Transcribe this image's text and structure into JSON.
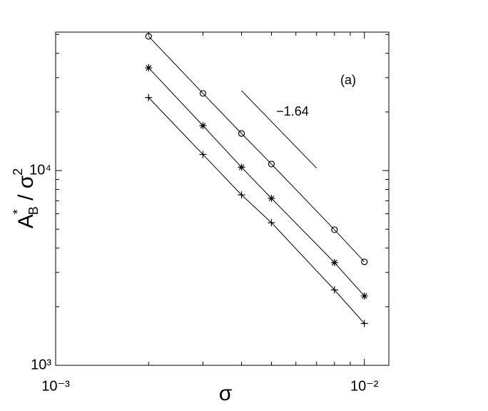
{
  "chart_data": {
    "type": "line",
    "xlabel": "σ",
    "ylabel": [
      "A",
      "*",
      "B",
      " / σ",
      "2"
    ],
    "xscale": "log",
    "yscale": "log",
    "xlim": [
      0.001,
      0.012
    ],
    "ylim": [
      1000,
      51400
    ],
    "xticks": [
      {
        "value": 0.001,
        "label": "10⁻³"
      },
      {
        "value": 0.01,
        "label": "10⁻²"
      }
    ],
    "yticks": [
      {
        "value": 1000,
        "label": "10³"
      },
      {
        "value": 10000,
        "label": "10⁴"
      }
    ],
    "x": [
      0.002,
      0.003,
      0.004,
      0.005,
      0.008,
      0.01
    ],
    "series": [
      {
        "marker": "circle",
        "color": "#000000",
        "values": [
          48900,
          24900,
          15500,
          10800,
          4970,
          3400
        ]
      },
      {
        "marker": "star",
        "color": "#000000",
        "values": [
          33700,
          17000,
          10400,
          7200,
          3370,
          2270
        ]
      },
      {
        "marker": "plus",
        "color": "#000000",
        "values": [
          23700,
          12100,
          7500,
          5400,
          2440,
          1640
        ]
      }
    ],
    "reference_line": {
      "x": [
        0.004,
        0.007
      ],
      "y": [
        25700,
        10300
      ],
      "label": "−1.64"
    },
    "panel_label": "(a)"
  }
}
